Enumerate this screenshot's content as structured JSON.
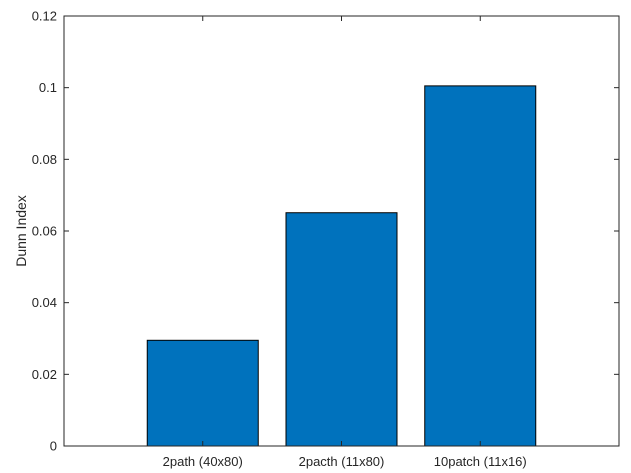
{
  "chart_data": {
    "type": "bar",
    "categories": [
      "2path (40x80)",
      "2pacth (11x80)",
      "10patch (11x16)"
    ],
    "values": [
      0.0295,
      0.0651,
      0.1005
    ],
    "ylabel": "Dunn Index",
    "xlabel": "",
    "title": "",
    "ylim": [
      0,
      0.12
    ],
    "xlim": [
      0,
      4
    ],
    "yticks": [
      "0",
      "0.02",
      "0.04",
      "0.06",
      "0.08",
      "0.1",
      "0.12"
    ],
    "grid": false,
    "bar_color": "#0072BD",
    "bar_edge_color": "#000000"
  }
}
